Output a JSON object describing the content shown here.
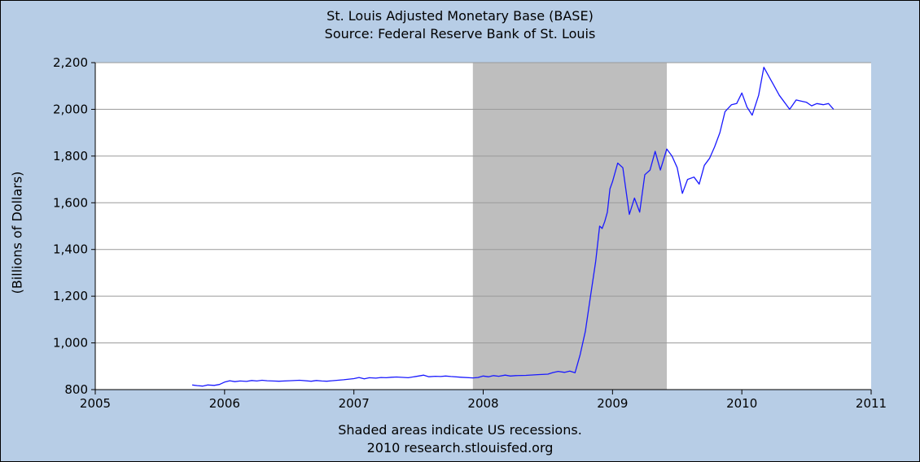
{
  "chart_data": {
    "type": "line",
    "title": "St. Louis Adjusted Monetary Base (BASE)",
    "subtitle": "Source: Federal Reserve Bank of St. Louis",
    "xlabel": "",
    "ylabel": "(Billions of Dollars)",
    "xlim": [
      2005,
      2011
    ],
    "ylim": [
      800,
      2200
    ],
    "x_ticks": [
      2005,
      2006,
      2007,
      2008,
      2009,
      2010,
      2011
    ],
    "y_ticks": [
      800,
      1000,
      1200,
      1400,
      1600,
      1800,
      2000,
      2200
    ],
    "y_tick_labels": [
      "800",
      "1,000",
      "1,200",
      "1,400",
      "1,600",
      "1,800",
      "2,000",
      "2,200"
    ],
    "grid": true,
    "line_color": "#1a1aff",
    "recession_color": "#bebebe",
    "recessions": [
      {
        "start": 2007.92,
        "end": 2009.42
      }
    ],
    "footnote": "Shaded areas indicate US recessions.",
    "credit": "2010 research.stlouisfed.org",
    "series": [
      {
        "x": [
          2005.75,
          2005.79,
          2005.83,
          2005.87,
          2005.92,
          2005.96,
          2006.0,
          2006.04,
          2006.08,
          2006.12,
          2006.17,
          2006.21,
          2006.25,
          2006.29,
          2006.33,
          2006.37,
          2006.42,
          2006.5,
          2006.58,
          2006.67,
          2006.71,
          2006.75,
          2006.79,
          2006.83,
          2006.92,
          2007.0,
          2007.04,
          2007.08,
          2007.12,
          2007.17,
          2007.21,
          2007.25,
          2007.29,
          2007.33,
          2007.42,
          2007.5,
          2007.54,
          2007.58,
          2007.63,
          2007.67,
          2007.71,
          2007.75,
          2007.83,
          2007.92,
          2007.96,
          2008.0,
          2008.04,
          2008.08,
          2008.12,
          2008.17,
          2008.21,
          2008.25,
          2008.33,
          2008.42,
          2008.5,
          2008.54,
          2008.58,
          2008.63,
          2008.67,
          2008.71,
          2008.75,
          2008.79,
          2008.83,
          2008.87,
          2008.9,
          2008.92,
          2008.94,
          2008.96,
          2008.98,
          2009.0,
          2009.04,
          2009.08,
          2009.13,
          2009.17,
          2009.21,
          2009.25,
          2009.29,
          2009.33,
          2009.37,
          2009.42,
          2009.46,
          2009.5,
          2009.54,
          2009.58,
          2009.63,
          2009.67,
          2009.71,
          2009.75,
          2009.79,
          2009.83,
          2009.87,
          2009.92,
          2009.96,
          2010.0,
          2010.04,
          2010.08,
          2010.13,
          2010.17,
          2010.21,
          2010.25,
          2010.29,
          2010.33,
          2010.37,
          2010.42,
          2010.46,
          2010.5,
          2010.54,
          2010.58,
          2010.63,
          2010.67,
          2010.71
        ],
        "values": [
          820,
          817,
          815,
          820,
          818,
          822,
          832,
          838,
          834,
          837,
          835,
          839,
          837,
          840,
          838,
          837,
          836,
          838,
          840,
          836,
          839,
          837,
          836,
          838,
          842,
          847,
          852,
          846,
          851,
          849,
          852,
          851,
          853,
          854,
          851,
          858,
          862,
          855,
          857,
          856,
          858,
          856,
          853,
          850,
          852,
          858,
          855,
          860,
          857,
          862,
          858,
          860,
          861,
          864,
          866,
          873,
          878,
          874,
          879,
          872,
          950,
          1050,
          1200,
          1350,
          1500,
          1490,
          1520,
          1560,
          1660,
          1690,
          1770,
          1750,
          1550,
          1620,
          1560,
          1720,
          1740,
          1820,
          1740,
          1830,
          1800,
          1750,
          1640,
          1700,
          1710,
          1680,
          1760,
          1790,
          1840,
          1900,
          1990,
          2020,
          2025,
          2070,
          2010,
          1975,
          2060,
          2180,
          2140,
          2100,
          2060,
          2030,
          2000,
          2040,
          2035,
          2030,
          2015,
          2025,
          2020,
          2025,
          2000
        ]
      }
    ]
  }
}
